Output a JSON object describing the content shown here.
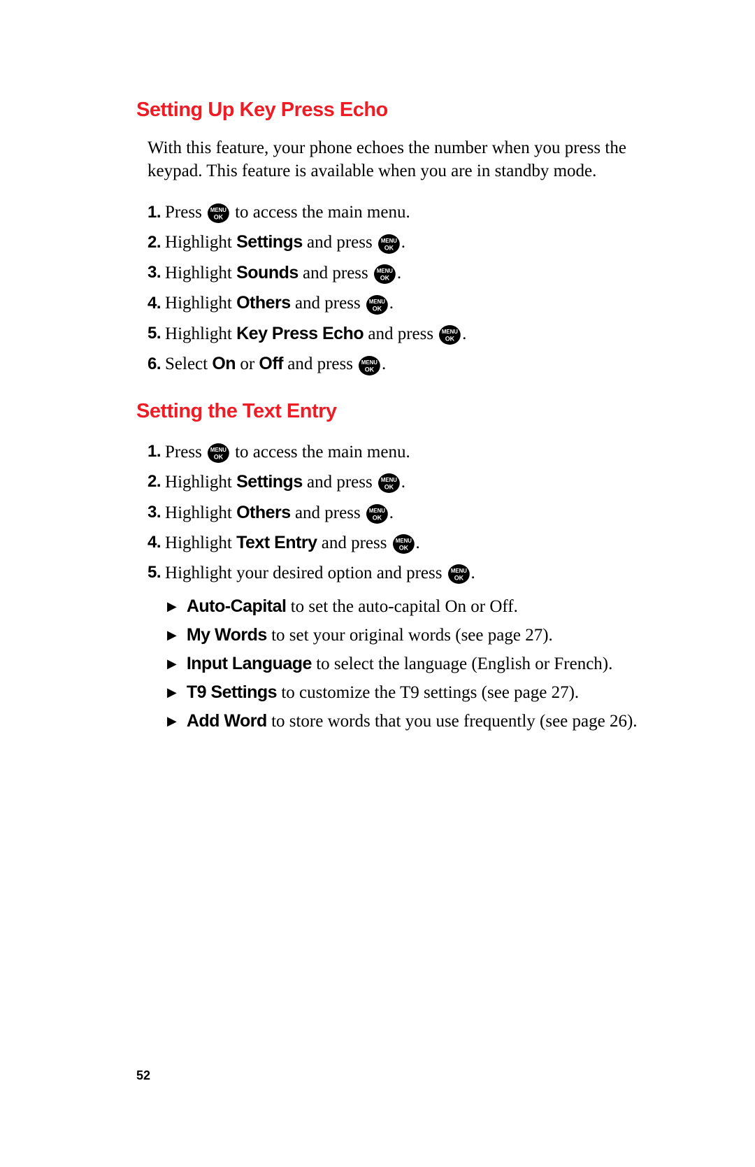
{
  "colors": {
    "heading": "#ee1c25",
    "text": "#000000",
    "icon_bg": "#000000",
    "icon_text": "#ffffff",
    "bg": "#ffffff"
  },
  "typography": {
    "heading_family": "Helvetica, Arial, sans-serif",
    "body_family": "Georgia, 'Times New Roman', serif",
    "heading_size_pt": 22,
    "body_size_pt": 19,
    "step_num_size_pt": 18,
    "page_num_size_pt": 14
  },
  "icon": {
    "name": "menu-ok-icon",
    "top_label": "MENU",
    "bottom_label": "OK",
    "radius": 14
  },
  "page_number": "52",
  "sections": [
    {
      "heading": "Setting Up Key Press Echo",
      "intro": "With this feature, your phone echoes the number when you press the keypad. This feature is available when you are in standby mode.",
      "steps": [
        {
          "num": "1.",
          "pre": "Press ",
          "icon": true,
          "post": " to access the main menu."
        },
        {
          "num": "2.",
          "pre": "Highlight ",
          "bold": "Settings",
          "mid": " and press ",
          "icon": true,
          "post": "."
        },
        {
          "num": "3.",
          "pre": "Highlight ",
          "bold": "Sounds",
          "mid": " and press ",
          "icon": true,
          "post": "."
        },
        {
          "num": "4.",
          "pre": "Highlight ",
          "bold": "Others",
          "mid": " and press ",
          "icon": true,
          "post": "."
        },
        {
          "num": "5.",
          "pre": "Highlight ",
          "bold": "Key Press Echo",
          "mid": " and press ",
          "icon": true,
          "post": "."
        },
        {
          "num": "6.",
          "pre": "Select ",
          "bold": "On",
          "mid": " or ",
          "bold2": "Off",
          "mid2": " and press ",
          "icon": true,
          "post": "."
        }
      ]
    },
    {
      "heading": "Setting the Text Entry",
      "steps": [
        {
          "num": "1.",
          "pre": "Press ",
          "icon": true,
          "post": " to access the main menu."
        },
        {
          "num": "2.",
          "pre": "Highlight ",
          "bold": "Settings",
          "mid": " and press ",
          "icon": true,
          "post": "."
        },
        {
          "num": "3.",
          "pre": "Highlight ",
          "bold": "Others",
          "mid": " and press ",
          "icon": true,
          "post": "."
        },
        {
          "num": "4.",
          "pre": "Highlight ",
          "bold": "Text Entry",
          "mid": " and press ",
          "icon": true,
          "post": "."
        },
        {
          "num": "5.",
          "pre": "Highlight your desired option and press ",
          "icon": true,
          "post": "."
        }
      ],
      "bullets": [
        {
          "bold": "Auto-Capital",
          "text": " to set the auto-capital On or Off."
        },
        {
          "bold": "My Words",
          "text": " to set your original words (see page 27)."
        },
        {
          "bold": "Input Language",
          "text": " to select the language (English or French)."
        },
        {
          "bold": "T9 Settings",
          "text": " to customize the T9 settings (see page 27)."
        },
        {
          "bold": "Add Word",
          "text": " to store words that you use frequently (see page 26)."
        }
      ]
    }
  ]
}
